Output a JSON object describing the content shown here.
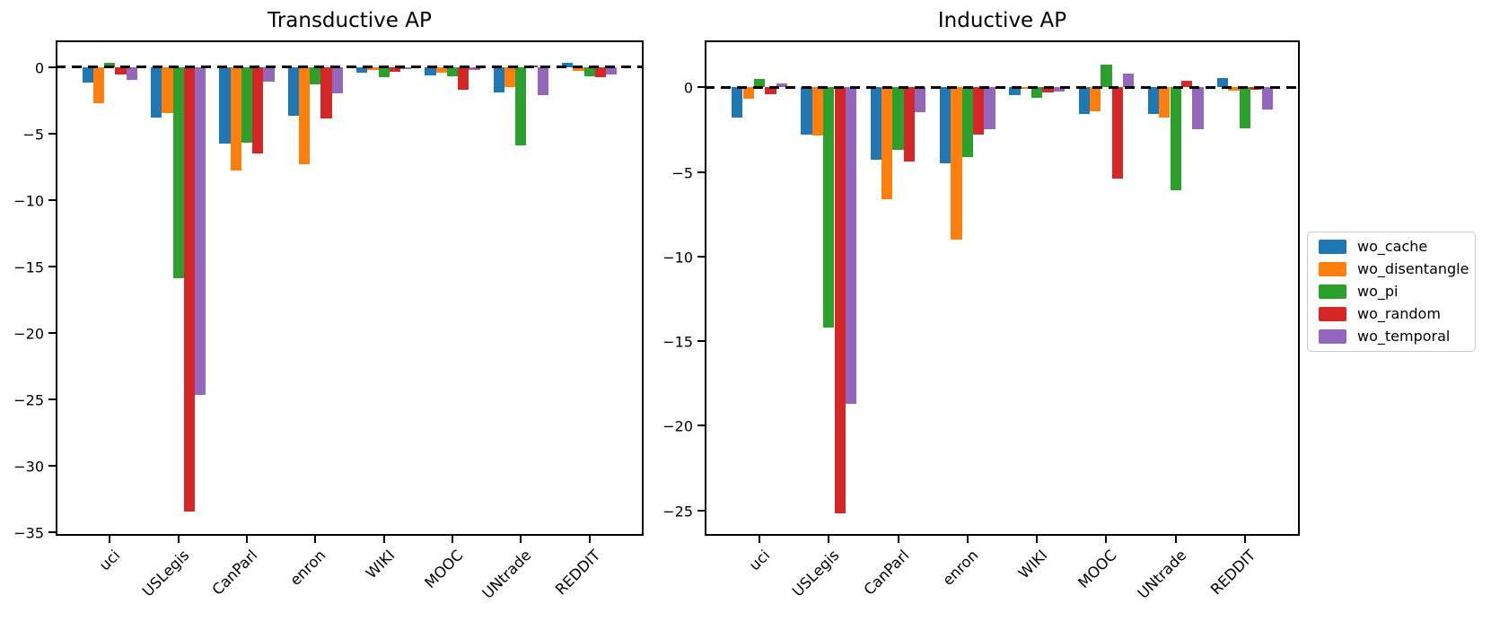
{
  "figure_background": "#ffffff",
  "series_names": [
    "wo_cache",
    "wo_disentangle",
    "wo_pi",
    "wo_random",
    "wo_temporal"
  ],
  "legend": {
    "position": "right-outside",
    "entries": [
      {
        "label": "wo_cache",
        "color": "#1f77b4"
      },
      {
        "label": "wo_disentangle",
        "color": "#ff7f0e"
      },
      {
        "label": "wo_pi",
        "color": "#2ca02c"
      },
      {
        "label": "wo_random",
        "color": "#d62728"
      },
      {
        "label": "wo_temporal",
        "color": "#9467bd"
      }
    ]
  },
  "chart_data": [
    {
      "type": "bar",
      "title": "Transductive AP",
      "categories": [
        "uci",
        "USLegis",
        "CanParl",
        "enron",
        "WIKI",
        "MOOC",
        "UNtrade",
        "REDDIT"
      ],
      "series": [
        {
          "name": "wo_cache",
          "color": "#1f77b4",
          "values": [
            -1.2,
            -3.8,
            -5.8,
            -3.7,
            -0.4,
            -0.65,
            -1.9,
            0.3
          ]
        },
        {
          "name": "wo_disentangle",
          "color": "#ff7f0e",
          "values": [
            -2.7,
            -3.5,
            -7.8,
            -7.3,
            -0.2,
            -0.45,
            -1.5,
            -0.3
          ]
        },
        {
          "name": "wo_pi",
          "color": "#2ca02c",
          "values": [
            0.3,
            -15.9,
            -5.7,
            -1.3,
            -0.8,
            -0.7,
            -5.9,
            -0.7
          ]
        },
        {
          "name": "wo_random",
          "color": "#d62728",
          "values": [
            -0.6,
            -33.5,
            -6.5,
            -3.9,
            -0.35,
            -1.7,
            0.1,
            -0.8
          ]
        },
        {
          "name": "wo_temporal",
          "color": "#9467bd",
          "values": [
            -1.0,
            -24.7,
            -1.1,
            -2.0,
            -0.15,
            -0.2,
            -2.1,
            -0.6
          ]
        }
      ],
      "ylabel": "",
      "xlabel": "",
      "ylim": [
        -35.3,
        2.0
      ],
      "yticks": [
        0,
        -5,
        -10,
        -15,
        -20,
        -25,
        -30,
        -35
      ],
      "grid": false,
      "zero_line": "dashed-black"
    },
    {
      "type": "bar",
      "title": "Inductive AP",
      "categories": [
        "uci",
        "USLegis",
        "CanParl",
        "enron",
        "WIKI",
        "MOOC",
        "UNtrade",
        "REDDIT"
      ],
      "series": [
        {
          "name": "wo_cache",
          "color": "#1f77b4",
          "values": [
            -1.8,
            -2.8,
            -4.3,
            -4.5,
            -0.45,
            -1.6,
            -1.6,
            0.55
          ]
        },
        {
          "name": "wo_disentangle",
          "color": "#ff7f0e",
          "values": [
            -0.7,
            -2.85,
            -6.6,
            -9.0,
            -0.1,
            -1.4,
            -1.8,
            -0.2
          ]
        },
        {
          "name": "wo_pi",
          "color": "#2ca02c",
          "values": [
            0.5,
            -14.2,
            -3.7,
            -4.1,
            -0.65,
            1.35,
            -6.1,
            -2.45
          ]
        },
        {
          "name": "wo_random",
          "color": "#d62728",
          "values": [
            -0.4,
            -25.2,
            -4.4,
            -2.8,
            -0.3,
            -5.4,
            0.4,
            -0.15
          ]
        },
        {
          "name": "wo_temporal",
          "color": "#9467bd",
          "values": [
            0.25,
            -18.7,
            -1.45,
            -2.5,
            -0.25,
            0.8,
            -2.5,
            -1.3
          ]
        }
      ],
      "ylabel": "",
      "xlabel": "",
      "ylim": [
        -26.5,
        2.77
      ],
      "yticks": [
        0,
        -5,
        -10,
        -15,
        -20,
        -25
      ],
      "grid": false,
      "zero_line": "dashed-black"
    }
  ]
}
